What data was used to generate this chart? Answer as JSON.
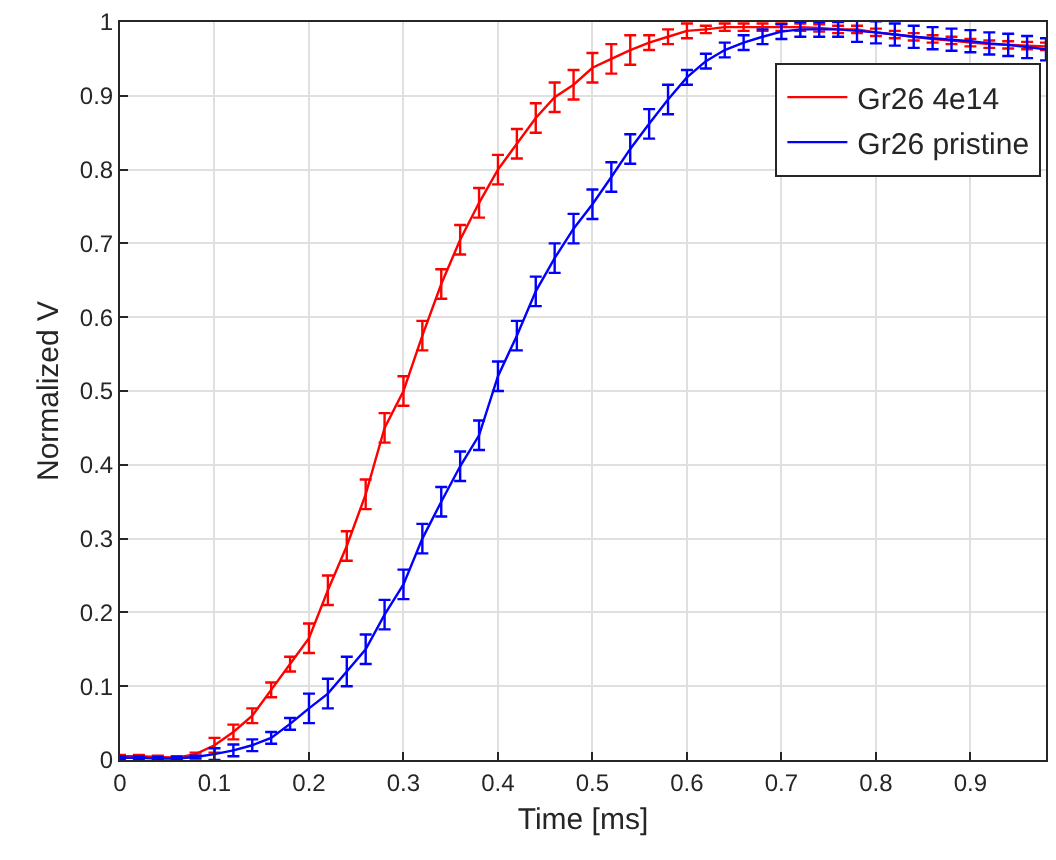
{
  "chart_data": {
    "type": "line",
    "xlabel": "Time [ms]",
    "ylabel": "Normalized V",
    "xlim": [
      0,
      0.98
    ],
    "ylim": [
      0,
      1
    ],
    "xticks": [
      0,
      0.1,
      0.2,
      0.3,
      0.4,
      0.5,
      0.6,
      0.7,
      0.8,
      0.9
    ],
    "yticks": [
      0,
      0.1,
      0.2,
      0.3,
      0.4,
      0.5,
      0.6,
      0.7,
      0.8,
      0.9,
      1
    ],
    "x": [
      0,
      0.02,
      0.04,
      0.06,
      0.08,
      0.1,
      0.12,
      0.14,
      0.16,
      0.18,
      0.2,
      0.22,
      0.24,
      0.26,
      0.28,
      0.3,
      0.32,
      0.34,
      0.36,
      0.38,
      0.4,
      0.42,
      0.44,
      0.46,
      0.48,
      0.5,
      0.52,
      0.54,
      0.56,
      0.58,
      0.6,
      0.62,
      0.64,
      0.66,
      0.68,
      0.7,
      0.72,
      0.74,
      0.76,
      0.78,
      0.8,
      0.82,
      0.84,
      0.86,
      0.88,
      0.9,
      0.92,
      0.94,
      0.96,
      0.98
    ],
    "series": [
      {
        "name": "Gr26 4e14",
        "color": "#ff0000",
        "values": [
          0.005,
          0.005,
          0.004,
          0.003,
          0.008,
          0.02,
          0.038,
          0.06,
          0.095,
          0.13,
          0.165,
          0.23,
          0.29,
          0.36,
          0.45,
          0.5,
          0.575,
          0.645,
          0.705,
          0.755,
          0.8,
          0.835,
          0.87,
          0.898,
          0.915,
          0.938,
          0.95,
          0.962,
          0.972,
          0.98,
          0.988,
          0.99,
          0.993,
          0.993,
          0.993,
          0.993,
          0.993,
          0.992,
          0.99,
          0.99,
          0.986,
          0.983,
          0.98,
          0.977,
          0.975,
          0.972,
          0.97,
          0.969,
          0.968,
          0.967
        ],
        "errors": [
          0.002,
          0.002,
          0.002,
          0.002,
          0.002,
          0.01,
          0.01,
          0.01,
          0.01,
          0.01,
          0.02,
          0.02,
          0.02,
          0.02,
          0.02,
          0.02,
          0.02,
          0.02,
          0.02,
          0.02,
          0.02,
          0.02,
          0.02,
          0.02,
          0.02,
          0.02,
          0.02,
          0.02,
          0.01,
          0.01,
          0.01,
          0.005,
          0.005,
          0.005,
          0.005,
          0.005,
          0.005,
          0.005,
          0.005,
          0.005,
          0.005,
          0.005,
          0.005,
          0.005,
          0.005,
          0.005,
          0.005,
          0.005,
          0.005,
          0.005
        ]
      },
      {
        "name": "Gr26 pristine",
        "color": "#0000ff",
        "values": [
          0.003,
          0.003,
          0.002,
          0.002,
          0.004,
          0.008,
          0.013,
          0.02,
          0.03,
          0.049,
          0.07,
          0.09,
          0.12,
          0.15,
          0.197,
          0.238,
          0.3,
          0.35,
          0.398,
          0.44,
          0.52,
          0.575,
          0.635,
          0.68,
          0.72,
          0.753,
          0.79,
          0.828,
          0.862,
          0.895,
          0.925,
          0.947,
          0.962,
          0.972,
          0.98,
          0.987,
          0.99,
          0.99,
          0.99,
          0.988,
          0.986,
          0.983,
          0.98,
          0.978,
          0.976,
          0.974,
          0.971,
          0.969,
          0.966,
          0.963
        ],
        "errors": [
          0.002,
          0.002,
          0.002,
          0.002,
          0.002,
          0.008,
          0.008,
          0.008,
          0.008,
          0.008,
          0.02,
          0.02,
          0.02,
          0.02,
          0.02,
          0.02,
          0.02,
          0.02,
          0.02,
          0.02,
          0.02,
          0.02,
          0.02,
          0.02,
          0.02,
          0.02,
          0.02,
          0.02,
          0.02,
          0.02,
          0.01,
          0.01,
          0.01,
          0.01,
          0.01,
          0.01,
          0.01,
          0.01,
          0.01,
          0.015,
          0.015,
          0.015,
          0.015,
          0.015,
          0.015,
          0.015,
          0.015,
          0.015,
          0.015,
          0.015
        ]
      }
    ],
    "grid": true,
    "legend": "top right",
    "line_style": "solid"
  }
}
